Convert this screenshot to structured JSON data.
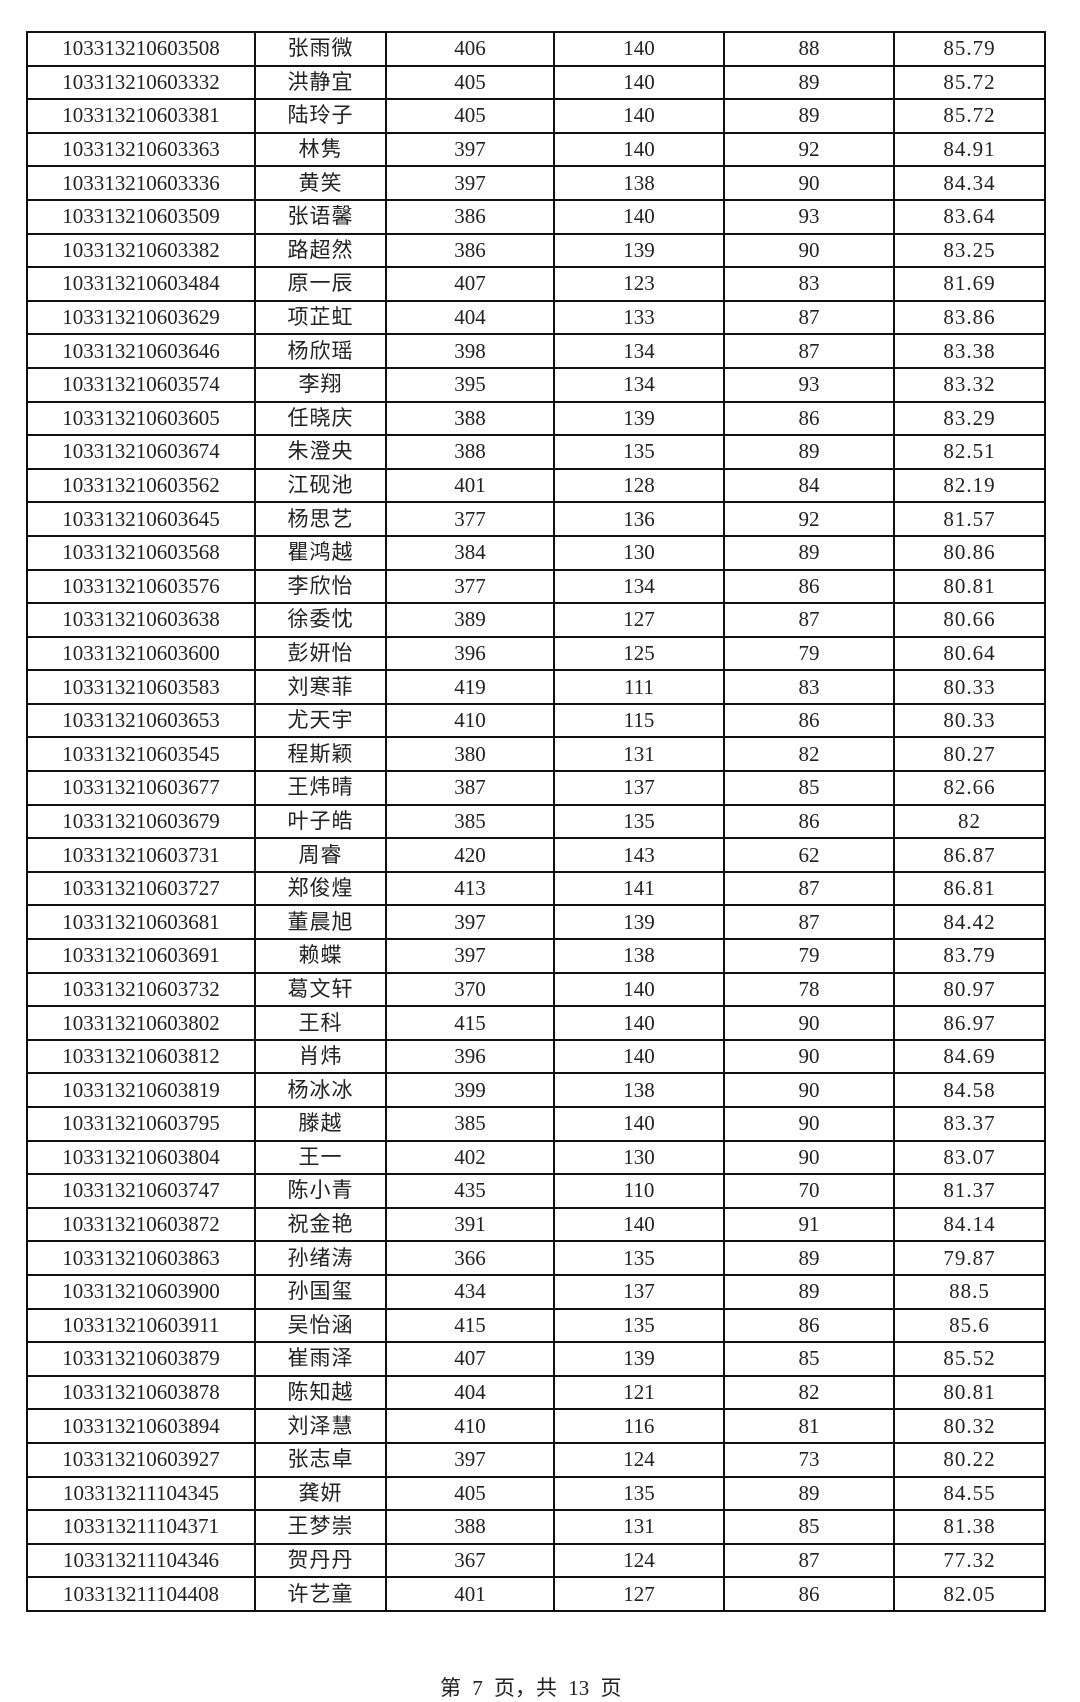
{
  "table": {
    "rows": [
      [
        "103313210603508",
        "张雨微",
        "406",
        "140",
        "88",
        "85.79"
      ],
      [
        "103313210603332",
        "洪静宜",
        "405",
        "140",
        "89",
        "85.72"
      ],
      [
        "103313210603381",
        "陆玲子",
        "405",
        "140",
        "89",
        "85.72"
      ],
      [
        "103313210603363",
        "林隽",
        "397",
        "140",
        "92",
        "84.91"
      ],
      [
        "103313210603336",
        "黄笑",
        "397",
        "138",
        "90",
        "84.34"
      ],
      [
        "103313210603509",
        "张语馨",
        "386",
        "140",
        "93",
        "83.64"
      ],
      [
        "103313210603382",
        "路超然",
        "386",
        "139",
        "90",
        "83.25"
      ],
      [
        "103313210603484",
        "原一辰",
        "407",
        "123",
        "83",
        "81.69"
      ],
      [
        "103313210603629",
        "项芷虹",
        "404",
        "133",
        "87",
        "83.86"
      ],
      [
        "103313210603646",
        "杨欣瑶",
        "398",
        "134",
        "87",
        "83.38"
      ],
      [
        "103313210603574",
        "李翔",
        "395",
        "134",
        "93",
        "83.32"
      ],
      [
        "103313210603605",
        "任晓庆",
        "388",
        "139",
        "86",
        "83.29"
      ],
      [
        "103313210603674",
        "朱澄央",
        "388",
        "135",
        "89",
        "82.51"
      ],
      [
        "103313210603562",
        "江砚池",
        "401",
        "128",
        "84",
        "82.19"
      ],
      [
        "103313210603645",
        "杨思艺",
        "377",
        "136",
        "92",
        "81.57"
      ],
      [
        "103313210603568",
        "瞿鸿越",
        "384",
        "130",
        "89",
        "80.86"
      ],
      [
        "103313210603576",
        "李欣怡",
        "377",
        "134",
        "86",
        "80.81"
      ],
      [
        "103313210603638",
        "徐委忱",
        "389",
        "127",
        "87",
        "80.66"
      ],
      [
        "103313210603600",
        "彭妍怡",
        "396",
        "125",
        "79",
        "80.64"
      ],
      [
        "103313210603583",
        "刘寒菲",
        "419",
        "111",
        "83",
        "80.33"
      ],
      [
        "103313210603653",
        "尤天宇",
        "410",
        "115",
        "86",
        "80.33"
      ],
      [
        "103313210603545",
        "程斯颖",
        "380",
        "131",
        "82",
        "80.27"
      ],
      [
        "103313210603677",
        "王炜晴",
        "387",
        "137",
        "85",
        "82.66"
      ],
      [
        "103313210603679",
        "叶子皓",
        "385",
        "135",
        "86",
        "82"
      ],
      [
        "103313210603731",
        "周睿",
        "420",
        "143",
        "62",
        "86.87"
      ],
      [
        "103313210603727",
        "郑俊煌",
        "413",
        "141",
        "87",
        "86.81"
      ],
      [
        "103313210603681",
        "董晨旭",
        "397",
        "139",
        "87",
        "84.42"
      ],
      [
        "103313210603691",
        "赖蝶",
        "397",
        "138",
        "79",
        "83.79"
      ],
      [
        "103313210603732",
        "葛文轩",
        "370",
        "140",
        "78",
        "80.97"
      ],
      [
        "103313210603802",
        "王科",
        "415",
        "140",
        "90",
        "86.97"
      ],
      [
        "103313210603812",
        "肖炜",
        "396",
        "140",
        "90",
        "84.69"
      ],
      [
        "103313210603819",
        "杨冰冰",
        "399",
        "138",
        "90",
        "84.58"
      ],
      [
        "103313210603795",
        "滕越",
        "385",
        "140",
        "90",
        "83.37"
      ],
      [
        "103313210603804",
        "王一",
        "402",
        "130",
        "90",
        "83.07"
      ],
      [
        "103313210603747",
        "陈小青",
        "435",
        "110",
        "70",
        "81.37"
      ],
      [
        "103313210603872",
        "祝金艳",
        "391",
        "140",
        "91",
        "84.14"
      ],
      [
        "103313210603863",
        "孙绪涛",
        "366",
        "135",
        "89",
        "79.87"
      ],
      [
        "103313210603900",
        "孙国玺",
        "434",
        "137",
        "89",
        "88.5"
      ],
      [
        "103313210603911",
        "吴怡涵",
        "415",
        "135",
        "86",
        "85.6"
      ],
      [
        "103313210603879",
        "崔雨泽",
        "407",
        "139",
        "85",
        "85.52"
      ],
      [
        "103313210603878",
        "陈知越",
        "404",
        "121",
        "82",
        "80.81"
      ],
      [
        "103313210603894",
        "刘泽慧",
        "410",
        "116",
        "81",
        "80.32"
      ],
      [
        "103313210603927",
        "张志卓",
        "397",
        "124",
        "73",
        "80.22"
      ],
      [
        "103313211104345",
        "龚妍",
        "405",
        "135",
        "89",
        "84.55"
      ],
      [
        "103313211104371",
        "王梦崇",
        "388",
        "131",
        "85",
        "81.38"
      ],
      [
        "103313211104346",
        "贺丹丹",
        "367",
        "124",
        "87",
        "77.32"
      ],
      [
        "103313211104408",
        "许艺童",
        "401",
        "127",
        "86",
        "82.05"
      ]
    ]
  },
  "footer": {
    "text": "第 7 页，共 13 页"
  }
}
